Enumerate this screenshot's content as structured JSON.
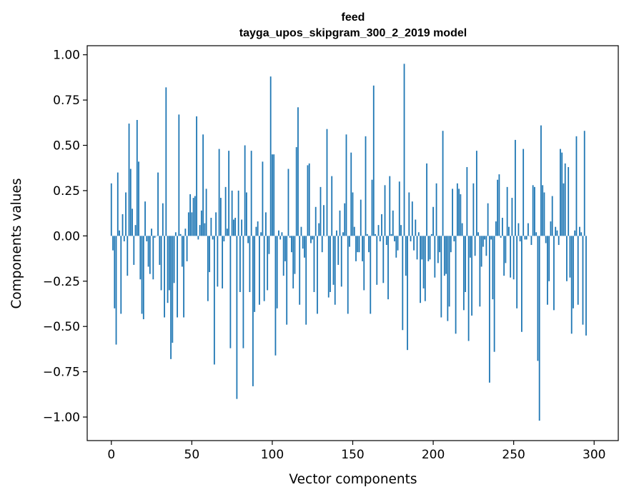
{
  "chart_data": {
    "type": "bar",
    "title": "feed",
    "subtitle": "tayga_upos_skipgram_300_2_2019 model",
    "xlabel": "Vector components",
    "ylabel": "Components values",
    "xlim": [
      -15,
      315
    ],
    "ylim": [
      -1.13,
      1.05
    ],
    "xticks": [
      0,
      50,
      100,
      150,
      200,
      250,
      300
    ],
    "yticks": [
      1.0,
      0.75,
      0.5,
      0.25,
      0.0,
      -0.25,
      -0.5,
      -0.75,
      -1.0
    ],
    "xtick_labels": [
      "0",
      "50",
      "100",
      "150",
      "200",
      "250",
      "300"
    ],
    "ytick_labels": [
      "1.00",
      "0.75",
      "0.50",
      "0.25",
      "0.00",
      "−0.25",
      "−0.50",
      "−0.75",
      "−1.00"
    ],
    "bar_color": "#1f77b4",
    "grid": false,
    "values": [
      0.29,
      -0.08,
      -0.4,
      -0.6,
      0.35,
      0.03,
      -0.43,
      0.12,
      -0.03,
      0.24,
      -0.22,
      0.62,
      0.37,
      0.15,
      -0.16,
      0.06,
      0.64,
      0.41,
      -0.24,
      -0.43,
      -0.46,
      0.19,
      -0.03,
      -0.17,
      -0.21,
      0.04,
      -0.24,
      -0.01,
      0.0,
      0.35,
      -0.16,
      -0.3,
      0.18,
      -0.45,
      0.82,
      -0.37,
      -0.3,
      -0.68,
      -0.59,
      -0.26,
      0.02,
      -0.45,
      0.67,
      0.01,
      -0.17,
      -0.45,
      0.04,
      -0.14,
      0.13,
      0.23,
      0.13,
      0.21,
      0.22,
      0.66,
      -0.02,
      0.06,
      0.14,
      0.56,
      0.07,
      0.26,
      -0.36,
      -0.2,
      0.1,
      -0.02,
      -0.71,
      0.13,
      -0.28,
      0.48,
      0.21,
      -0.29,
      -0.03,
      0.27,
      0.04,
      0.47,
      -0.62,
      0.25,
      0.09,
      0.1,
      -0.9,
      0.25,
      -0.31,
      0.09,
      -0.62,
      0.5,
      0.24,
      -0.04,
      -0.31,
      0.47,
      -0.83,
      -0.42,
      0.05,
      0.08,
      -0.38,
      0.02,
      0.41,
      -0.36,
      0.13,
      -0.3,
      -0.1,
      0.88,
      0.45,
      0.45,
      -0.66,
      -0.4,
      0.03,
      -0.02,
      0.02,
      -0.22,
      -0.14,
      -0.49,
      0.37,
      -0.01,
      -0.09,
      -0.29,
      -0.21,
      0.49,
      0.71,
      -0.38,
      0.05,
      -0.07,
      -0.12,
      -0.49,
      0.39,
      0.4,
      -0.04,
      -0.02,
      -0.31,
      0.16,
      -0.43,
      0.07,
      0.27,
      -0.09,
      0.17,
      0.0,
      0.59,
      -0.34,
      -0.31,
      0.33,
      -0.27,
      -0.38,
      0.03,
      -0.16,
      0.14,
      -0.28,
      0.02,
      0.18,
      0.56,
      -0.43,
      -0.06,
      0.46,
      0.24,
      0.05,
      -0.14,
      -0.09,
      -0.09,
      0.2,
      -0.14,
      -0.3,
      0.55,
      0.01,
      -0.09,
      -0.43,
      0.31,
      0.83,
      0.01,
      -0.27,
      0.06,
      -0.03,
      0.12,
      -0.26,
      0.28,
      -0.05,
      -0.35,
      0.33,
      0.01,
      0.14,
      -0.03,
      -0.12,
      -0.08,
      0.3,
      0.06,
      -0.52,
      0.95,
      -0.22,
      -0.63,
      0.24,
      -0.03,
      0.19,
      -0.08,
      0.09,
      -0.13,
      0.02,
      -0.37,
      -0.13,
      -0.29,
      -0.36,
      0.4,
      -0.14,
      -0.13,
      0.01,
      0.16,
      -0.23,
      0.29,
      -0.15,
      -0.09,
      -0.45,
      0.58,
      -0.22,
      -0.21,
      -0.47,
      -0.39,
      -0.09,
      0.26,
      -0.03,
      -0.54,
      0.29,
      0.26,
      0.23,
      0.07,
      -0.41,
      -0.31,
      0.38,
      -0.58,
      -0.12,
      -0.44,
      0.29,
      -0.11,
      0.47,
      0.02,
      -0.39,
      -0.17,
      -0.06,
      -0.02,
      -0.11,
      0.18,
      -0.81,
      -0.02,
      -0.35,
      -0.64,
      0.08,
      0.31,
      0.34,
      -0.01,
      0.1,
      -0.22,
      -0.15,
      0.27,
      0.05,
      -0.23,
      0.21,
      -0.24,
      0.53,
      -0.4,
      0.07,
      -0.03,
      -0.53,
      0.48,
      -0.02,
      -0.02,
      0.07,
      0.0,
      -0.05,
      0.28,
      0.27,
      0.02,
      -0.69,
      -1.02,
      0.61,
      0.28,
      0.24,
      -0.04,
      -0.38,
      -0.25,
      0.08,
      0.22,
      -0.41,
      0.05,
      0.03,
      -0.05,
      0.48,
      0.46,
      0.29,
      0.4,
      -0.25,
      0.38,
      -0.23,
      -0.54,
      -0.4,
      0.03,
      0.55,
      -0.38,
      0.05,
      0.02,
      -0.49,
      0.58,
      -0.55
    ]
  }
}
